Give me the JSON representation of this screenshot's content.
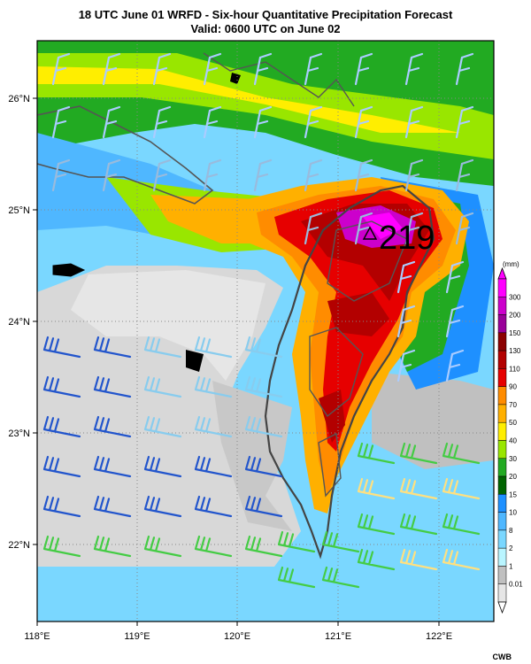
{
  "title_line1": "18 UTC June 01 WRFD - Six-hour Quantitative Precipitation Forecast",
  "title_line2": "Valid: 0600 UTC on June 02",
  "credit": "CWB",
  "max_annotation": "219",
  "map": {
    "lon_ticks": [
      "118°E",
      "119°E",
      "120°E",
      "121°E",
      "122°E"
    ],
    "lat_ticks": [
      "26°N",
      "25°N",
      "24°N",
      "23°N",
      "22°N"
    ],
    "lon_range": [
      118.0,
      122.5
    ],
    "lat_range": [
      21.4,
      26.5
    ]
  },
  "legend": {
    "unit": "(mm)",
    "levels": [
      "300",
      "200",
      "150",
      "130",
      "110",
      "90",
      "70",
      "50",
      "40",
      "30",
      "20",
      "15",
      "10",
      "8",
      "2",
      "1",
      "0.01"
    ],
    "colors": [
      "#ff00ff",
      "#cc00cc",
      "#990099",
      "#8b0000",
      "#b30000",
      "#e60000",
      "#ff8c00",
      "#ffb000",
      "#ffee00",
      "#99e600",
      "#22aa22",
      "#006400",
      "#1e90ff",
      "#4fb7ff",
      "#7ad7ff",
      "#b9f5ff",
      "#c0c0c0",
      "#e6e6e6"
    ]
  },
  "colors": {
    "taiwan_outline": "#444444",
    "grid": "#888888",
    "barb_dark_blue": "#2255cc",
    "barb_light_blue": "#88ccee",
    "barb_pale": "#aaccff",
    "barb_green": "#44cc44",
    "barb_yellow": "#ffe080",
    "barb_gray": "#cccccc"
  }
}
